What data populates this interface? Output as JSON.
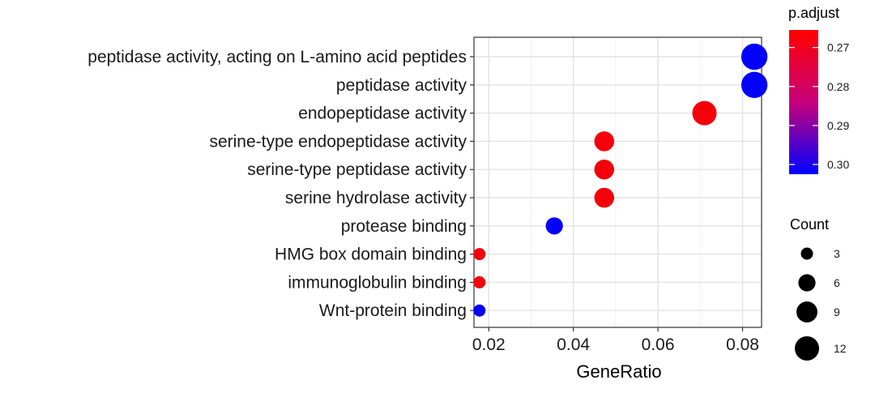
{
  "chart_data": {
    "type": "scatter",
    "xlabel": "GeneRatio",
    "ylabel": "",
    "xlim": [
      0.0165,
      0.0845
    ],
    "x_ticks": [
      0.02,
      0.04,
      0.06,
      0.08
    ],
    "x_tick_labels": [
      "0.02",
      "0.04",
      "0.06",
      "0.08"
    ],
    "grid": true,
    "categories": [
      "peptidase activity, acting on L-amino acid peptides",
      "peptidase activity",
      "endopeptidase activity",
      "serine-type endopeptidase activity",
      "serine-type peptidase activity",
      "serine hydrolase activity",
      "protease binding",
      "HMG box domain binding",
      "immunoglobulin binding",
      "Wnt-protein binding"
    ],
    "points": [
      {
        "term": "peptidase activity, acting on L-amino acid peptides",
        "gene_ratio": 0.0828,
        "count": 14,
        "p_adjust": 0.302
      },
      {
        "term": "peptidase activity",
        "gene_ratio": 0.0828,
        "count": 14,
        "p_adjust": 0.302
      },
      {
        "term": "endopeptidase activity",
        "gene_ratio": 0.071,
        "count": 12,
        "p_adjust": 0.267
      },
      {
        "term": "serine-type endopeptidase activity",
        "gene_ratio": 0.0473,
        "count": 8,
        "p_adjust": 0.267
      },
      {
        "term": "serine-type peptidase activity",
        "gene_ratio": 0.0473,
        "count": 8,
        "p_adjust": 0.267
      },
      {
        "term": "serine hydrolase activity",
        "gene_ratio": 0.0473,
        "count": 8,
        "p_adjust": 0.267
      },
      {
        "term": "protease binding",
        "gene_ratio": 0.0355,
        "count": 6,
        "p_adjust": 0.302
      },
      {
        "term": "HMG box domain binding",
        "gene_ratio": 0.0178,
        "count": 3,
        "p_adjust": 0.267
      },
      {
        "term": "immunoglobulin binding",
        "gene_ratio": 0.0178,
        "count": 3,
        "p_adjust": 0.267
      },
      {
        "term": "Wnt-protein binding",
        "gene_ratio": 0.0178,
        "count": 3,
        "p_adjust": 0.302
      }
    ],
    "color_legend": {
      "title": "p.adjust",
      "min": 0.2655,
      "max": 0.3025,
      "low_color": "#ff0000",
      "high_color": "#0000ff",
      "ticks": [
        0.27,
        0.28,
        0.29,
        0.3
      ],
      "tick_labels": [
        "0.27",
        "0.28",
        "0.29",
        "0.30"
      ],
      "placement": "right"
    },
    "size_legend": {
      "title": "Count",
      "values": [
        3,
        6,
        9,
        12
      ],
      "labels": [
        "3",
        "6",
        "9",
        "12"
      ],
      "placement": "right"
    }
  }
}
